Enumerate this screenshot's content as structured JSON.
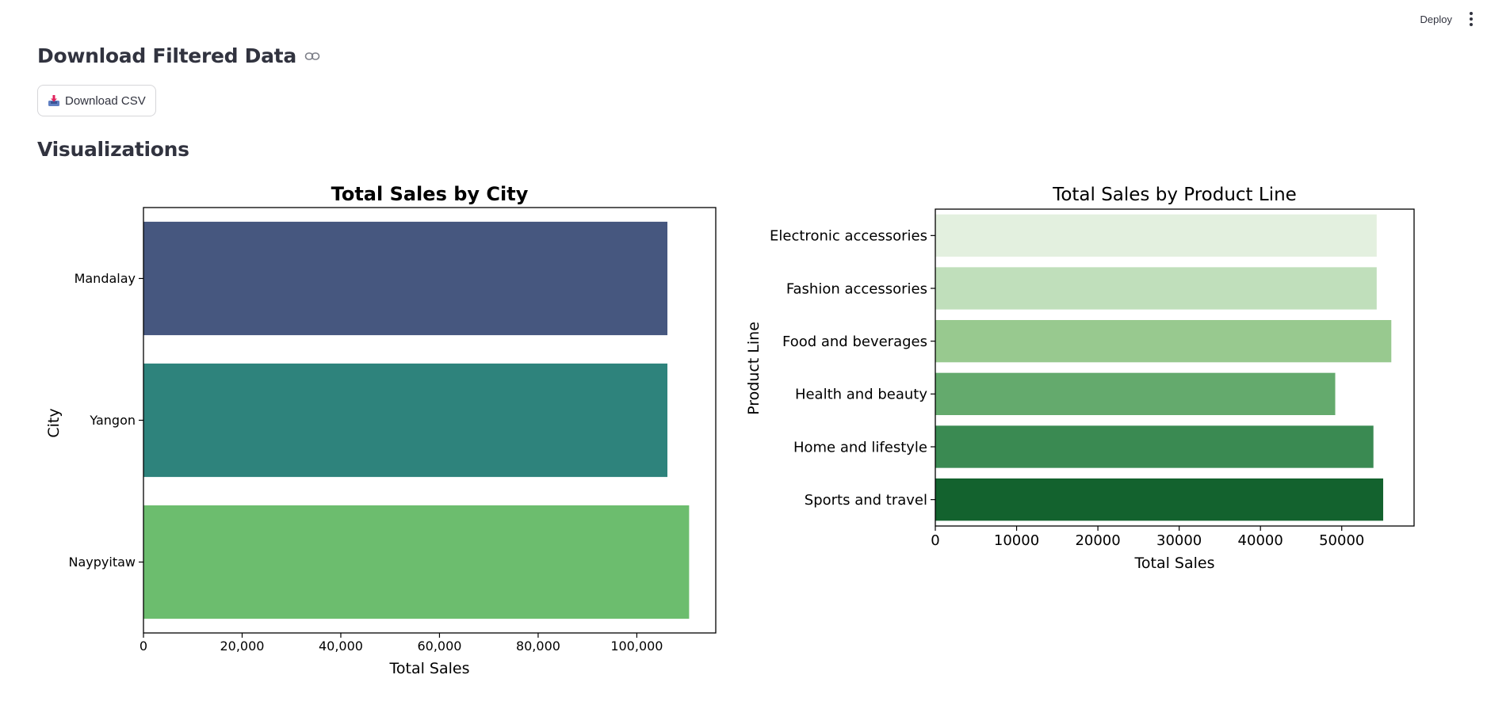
{
  "toolbar": {
    "deploy_label": "Deploy",
    "menu_icon": "vertical-ellipsis-icon"
  },
  "download_section": {
    "title": "Download Filtered Data",
    "link_icon": "link-icon",
    "button_label": "Download CSV",
    "button_icon": "inbox-tray-icon"
  },
  "visualizations": {
    "title": "Visualizations"
  },
  "colors": {
    "city": [
      "#46577f",
      "#2e837c",
      "#6cbd6e"
    ],
    "product": [
      "#e3f0df",
      "#c0dfbb",
      "#98c98f",
      "#64aa6d",
      "#3a8a52",
      "#13622e"
    ]
  },
  "chart_data": [
    {
      "type": "bar",
      "orientation": "horizontal",
      "title": "Total Sales by City",
      "xlabel": "Total Sales",
      "ylabel": "City",
      "categories": [
        "Mandalay",
        "Yangon",
        "Naypyitaw"
      ],
      "values": [
        106200,
        106200,
        110600
      ],
      "xlim": [
        0,
        116000
      ],
      "xticks": [
        0,
        20000,
        40000,
        60000,
        80000,
        100000
      ],
      "xtick_labels": [
        "0",
        "20,000",
        "40,000",
        "60,000",
        "80,000",
        "100,000"
      ]
    },
    {
      "type": "bar",
      "orientation": "horizontal",
      "title": "Total Sales by Product Line",
      "xlabel": "Total Sales",
      "ylabel": "Product Line",
      "categories": [
        "Electronic accessories",
        "Fashion accessories",
        "Food and beverages",
        "Health and beauty",
        "Home and lifestyle",
        "Sports and travel"
      ],
      "values": [
        54300,
        54300,
        56100,
        49200,
        53900,
        55100
      ],
      "xlim": [
        0,
        58900
      ],
      "xticks": [
        0,
        10000,
        20000,
        30000,
        40000,
        50000
      ],
      "xtick_labels": [
        "0",
        "10000",
        "20000",
        "30000",
        "40000",
        "50000"
      ]
    }
  ]
}
